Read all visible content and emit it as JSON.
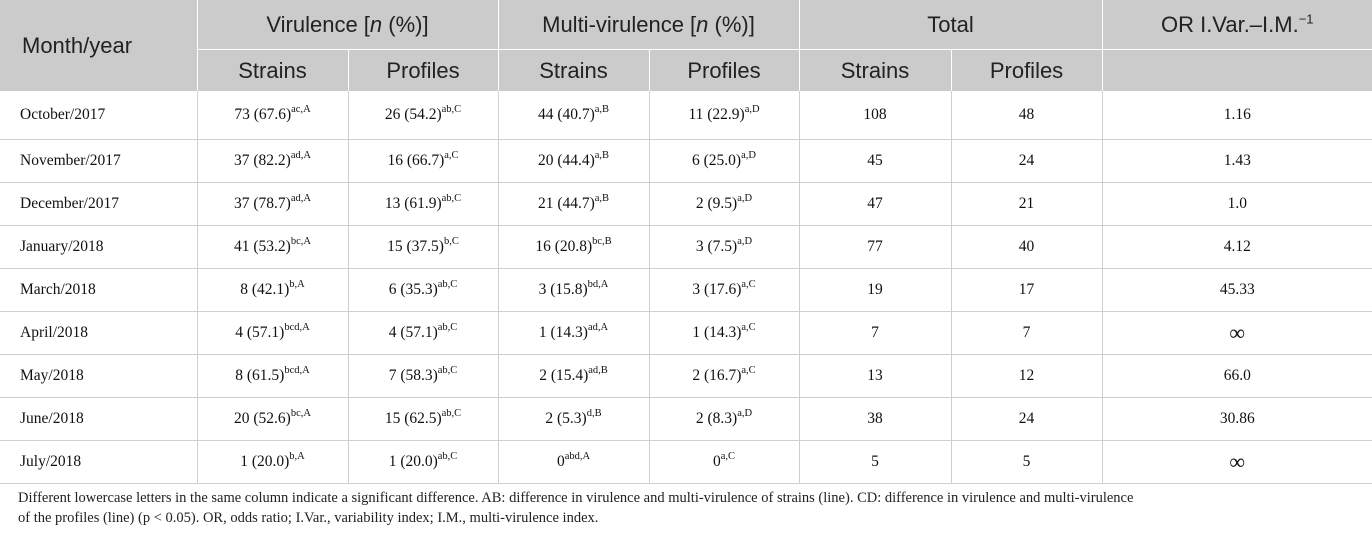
{
  "headers": {
    "month": "Month/year",
    "virulence_pre": "Virulence [",
    "multivirulence_pre": "Multi-virulence [",
    "n": "n",
    "pct_close": " (%)]",
    "total": "Total",
    "or_main": "OR I.Var.–I.M.",
    "or_sup": "−1",
    "strains": "Strains",
    "profiles": "Profiles"
  },
  "rows": [
    {
      "month": "October/2017",
      "vs": "73 (67.6)",
      "vs_sup": "ac,A",
      "vp": "26 (54.2)",
      "vp_sup": "ab,C",
      "ms": "44 (40.7)",
      "ms_sup": "a,B",
      "mp": "11 (22.9)",
      "mp_sup": "a,D",
      "ts": "108",
      "tp": "48",
      "or": "1.16"
    },
    {
      "month": "November/2017",
      "vs": "37 (82.2)",
      "vs_sup": "ad,A",
      "vp": "16 (66.7)",
      "vp_sup": "a,C",
      "ms": "20 (44.4)",
      "ms_sup": "a,B",
      "mp": "6 (25.0)",
      "mp_sup": "a,D",
      "ts": "45",
      "tp": "24",
      "or": "1.43"
    },
    {
      "month": "December/2017",
      "vs": "37 (78.7)",
      "vs_sup": "ad,A",
      "vp": "13 (61.9)",
      "vp_sup": "ab,C",
      "ms": "21 (44.7)",
      "ms_sup": "a,B",
      "mp": "2 (9.5)",
      "mp_sup": "a,D",
      "ts": "47",
      "tp": "21",
      "or": "1.0"
    },
    {
      "month": "January/2018",
      "vs": "41 (53.2)",
      "vs_sup": "bc,A",
      "vp": "15 (37.5)",
      "vp_sup": "b,C",
      "ms": "16 (20.8)",
      "ms_sup": "bc,B",
      "mp": "3 (7.5)",
      "mp_sup": "a,D",
      "ts": "77",
      "tp": "40",
      "or": "4.12"
    },
    {
      "month": "March/2018",
      "vs": "8 (42.1)",
      "vs_sup": "b,A",
      "vp": "6 (35.3)",
      "vp_sup": "ab,C",
      "ms": "3 (15.8)",
      "ms_sup": "bd,A",
      "mp": "3 (17.6)",
      "mp_sup": "a,C",
      "ts": "19",
      "tp": "17",
      "or": "45.33"
    },
    {
      "month": "April/2018",
      "vs": "4 (57.1)",
      "vs_sup": "bcd,A",
      "vp": "4 (57.1)",
      "vp_sup": "ab,C",
      "ms": "1 (14.3)",
      "ms_sup": "ad,A",
      "mp": "1 (14.3)",
      "mp_sup": "a,C",
      "ts": "7",
      "tp": "7",
      "or": "∞"
    },
    {
      "month": "May/2018",
      "vs": "8 (61.5)",
      "vs_sup": "bcd,A",
      "vp": "7 (58.3)",
      "vp_sup": "ab,C",
      "ms": "2 (15.4)",
      "ms_sup": "ad,B",
      "mp": "2 (16.7)",
      "mp_sup": "a,C",
      "ts": "13",
      "tp": "12",
      "or": "66.0"
    },
    {
      "month": "June/2018",
      "vs": "20 (52.6)",
      "vs_sup": "bc,A",
      "vp": "15 (62.5)",
      "vp_sup": "ab,C",
      "ms": "2 (5.3)",
      "ms_sup": "d,B",
      "mp": "2 (8.3)",
      "mp_sup": "a,D",
      "ts": "38",
      "tp": "24",
      "or": "30.86"
    },
    {
      "month": "July/2018",
      "vs": "1 (20.0)",
      "vs_sup": "b,A",
      "vp": "1 (20.0)",
      "vp_sup": "ab,C",
      "ms": "0",
      "ms_sup": "abd,A",
      "mp": "0",
      "mp_sup": "a,C",
      "ts": "5",
      "tp": "5",
      "or": "∞"
    }
  ],
  "footnote": {
    "line1": "Different lowercase letters in the same column indicate a significant difference. AB: difference in virulence and multi-virulence of strains (line). CD: difference in virulence and multi-virulence",
    "line2": "of the profiles (line) (p < 0.05). OR, odds ratio; I.Var., variability index; I.M., multi-virulence index."
  }
}
